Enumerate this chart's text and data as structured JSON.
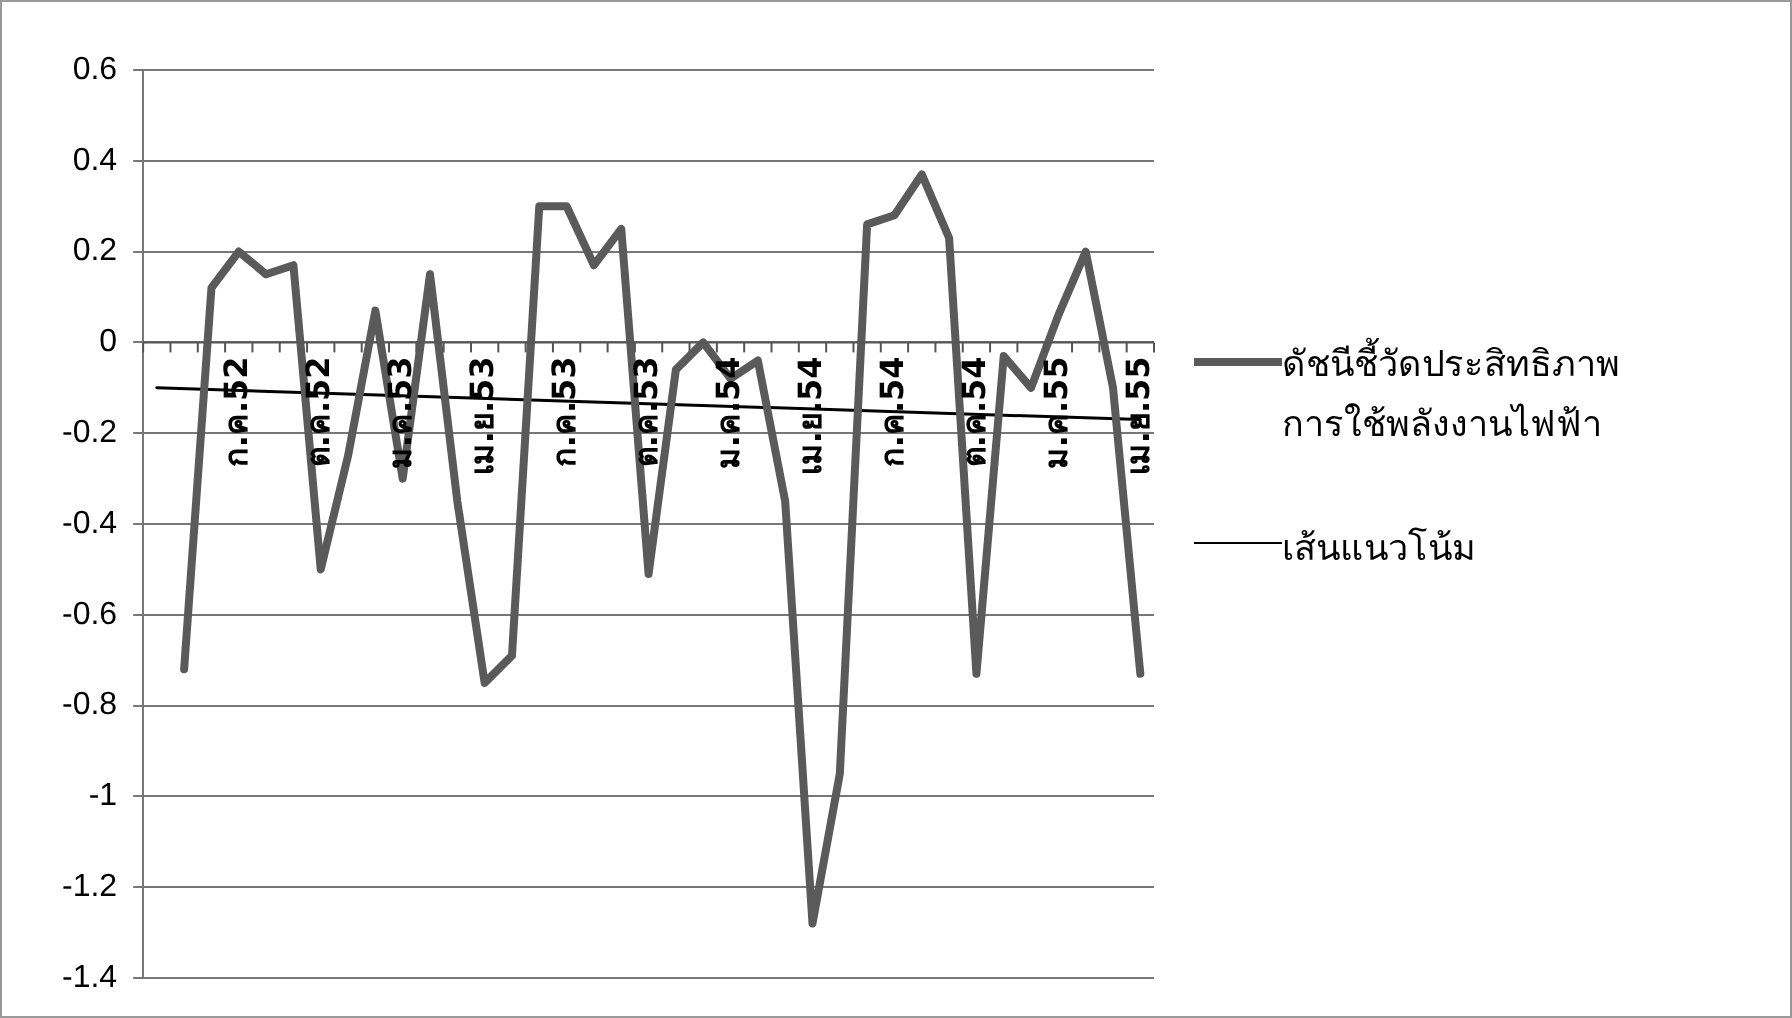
{
  "chart_data": {
    "type": "line",
    "categories": [
      null,
      null,
      null,
      "ก.ค.52",
      null,
      null,
      "ต.ค.52",
      null,
      null,
      "ม.ค.53",
      null,
      null,
      "เม.ย.53",
      null,
      null,
      "ก.ค.53",
      null,
      null,
      "ต.ค.53",
      null,
      null,
      "ม.ค.54",
      null,
      null,
      "เม.ย.54",
      null,
      null,
      "ก.ค.54",
      null,
      null,
      "ต.ค.54",
      null,
      null,
      "ม.ค.55",
      null,
      null,
      "เม.ย.55"
    ],
    "series": [
      {
        "name": "ดัชนีชี้วัดประสิทธิภาพการใช้พลังงานไฟฟ้า",
        "color": "#5a5a5a",
        "values": [
          null,
          -0.72,
          0.12,
          0.2,
          0.15,
          0.17,
          -0.5,
          -0.25,
          0.07,
          -0.3,
          0.15,
          -0.35,
          -0.75,
          -0.69,
          0.3,
          0.3,
          0.17,
          0.25,
          -0.51,
          -0.06,
          0.0,
          -0.08,
          -0.04,
          -0.35,
          -1.28,
          -0.95,
          0.26,
          0.28,
          0.37,
          0.23,
          -0.73,
          -0.03,
          -0.1,
          0.06,
          0.2,
          -0.1,
          -0.73
        ]
      },
      {
        "name": "เส้นแนวโน้ม",
        "type": "line",
        "color": "#000000",
        "values": [
          -0.1,
          null,
          null,
          null,
          null,
          null,
          null,
          null,
          null,
          null,
          null,
          null,
          null,
          null,
          null,
          null,
          null,
          null,
          null,
          null,
          null,
          null,
          null,
          null,
          null,
          null,
          null,
          null,
          null,
          null,
          null,
          null,
          null,
          null,
          null,
          null,
          -0.17
        ]
      }
    ],
    "ylim": [
      -1.4,
      0.6
    ],
    "yticks": [
      -1.4,
      -1.2,
      -1,
      -0.8,
      -0.6,
      -0.4,
      -0.2,
      0,
      0.2,
      0.4,
      0.6
    ],
    "grid": "y",
    "legend": "right",
    "marker": "none",
    "line_style": "solid"
  }
}
